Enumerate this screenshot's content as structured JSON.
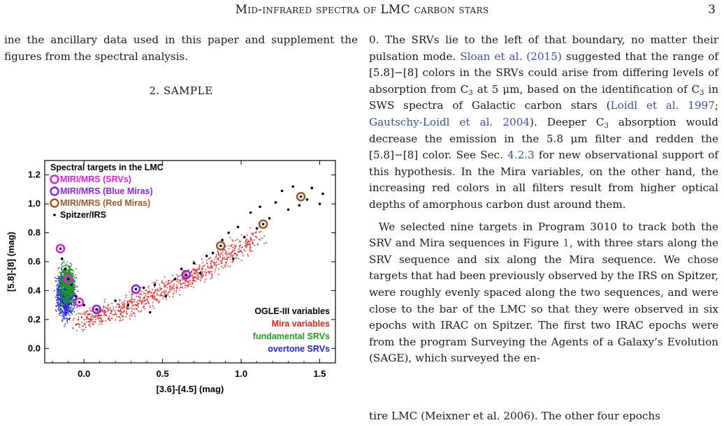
{
  "header": {
    "title": "Mid-infrared spectra of LMC carbon stars",
    "page_number": "3"
  },
  "left_column": {
    "intro_text": "ine the ancillary data used in this paper and supplement the figures from the spectral analysis.",
    "section_heading": "2. SAMPLE"
  },
  "right_column": {
    "p1_a": "0. The SRVs lie to the left of that boundary, no matter their pulsation mode. ",
    "p1_cite1": "Sloan et al. (2015)",
    "p1_b": " suggested that the range of [5.8]−[8] colors in the SRVs could arise from differing levels of absorption from C",
    "p1_c": " at 5 μm, based on the identification of C",
    "p1_d": " in SWS spectra of Galactic carbon stars (",
    "p1_cite2": "Loidl et al. 1997",
    "p1_e": "; ",
    "p1_cite3": "Gautschy-Loidl et al. 2004",
    "p1_f": "). Deeper C",
    "p1_g": " absorption would decrease the emission in the 5.8 μm filter and redden the [5.8]−[8] color. See Sec. ",
    "p1_cite4": "4.2.3",
    "p1_h": " for new observational support of this hypothesis. In the Mira variables, on the other hand, the increasing red colors in all filters result from higher optical depths of amorphous carbon dust around them.",
    "sub3": "3",
    "p2_a": "We selected nine targets in Program 3010 to track both the SRV and Mira sequences in Figure ",
    "p2_cite1": "1",
    "p2_b": ", with three stars along the SRV sequence and six along the Mira sequence. We chose targets that had been previously observed by the IRS on Spitzer, were roughly evenly spaced along the two sequences, and were close to the bar of the LMC so that they were observed in six epochs with IRAC on Spitzer. The first two IRAC epochs were from the program Surveying the Agents of a Galaxy’s Evolution (SAGE), which surveyed the en-",
    "p2_cut": "tire LMC (Meixner et al. 2006). The other four epochs"
  },
  "chart_data": {
    "type": "scatter",
    "title": "",
    "xlabel": "[3.6]-[4.5] (mag)",
    "ylabel": "[5.8]-[8] (mag)",
    "xlim": [
      -0.25,
      1.6
    ],
    "ylim": [
      -0.1,
      1.3
    ],
    "x_ticks": [
      "0.0",
      "0.5",
      "1.0",
      "1.5"
    ],
    "x_tick_values": [
      0.0,
      0.5,
      1.0,
      1.5
    ],
    "y_ticks": [
      "0.0",
      "0.2",
      "0.4",
      "0.6",
      "0.8",
      "1.0",
      "1.2"
    ],
    "y_tick_values": [
      0.0,
      0.2,
      0.4,
      0.6,
      0.8,
      1.0,
      1.2
    ],
    "legend_top": {
      "heading": "Spectral targets in the LMC",
      "entries": [
        {
          "label": "MIRI/MRS (SRVs)",
          "color": "#e21ee2"
        },
        {
          "label": "MIRI/MRS (Blue Miras)",
          "color": "#8a22e8"
        },
        {
          "label": "MIRI/MRS (Red Miras)",
          "color": "#9a5a2a"
        },
        {
          "label": "Spitzer/IRS",
          "color": "#000000"
        }
      ]
    },
    "legend_bottom": [
      {
        "label": "OGLE-III variables",
        "color": "#000000"
      },
      {
        "label": "Mira variables",
        "color": "#ee1c1c"
      },
      {
        "label": "fundamental SRVs",
        "color": "#1e9e1e"
      },
      {
        "label": "overtone SRVs",
        "color": "#2020e0"
      }
    ],
    "series": [
      {
        "name": "MIRI/MRS (SRVs)",
        "color": "#e21ee2",
        "points": [
          [
            -0.15,
            0.69
          ],
          [
            -0.1,
            0.48
          ],
          [
            -0.03,
            0.32
          ]
        ]
      },
      {
        "name": "MIRI/MRS (Blue Miras)",
        "color": "#8a22e8",
        "points": [
          [
            0.08,
            0.27
          ],
          [
            0.33,
            0.41
          ],
          [
            0.65,
            0.51
          ]
        ]
      },
      {
        "name": "MIRI/MRS (Red Miras)",
        "color": "#9a5a2a",
        "points": [
          [
            0.87,
            0.71
          ],
          [
            1.14,
            0.86
          ],
          [
            1.38,
            1.05
          ]
        ]
      },
      {
        "name": "Spitzer/IRS",
        "color": "#000000",
        "points": [
          [
            -0.14,
            0.62
          ],
          [
            -0.12,
            0.55
          ],
          [
            -0.08,
            0.44
          ],
          [
            -0.05,
            0.36
          ],
          [
            0.0,
            0.3
          ],
          [
            0.2,
            0.33
          ],
          [
            0.28,
            0.3
          ],
          [
            0.38,
            0.42
          ],
          [
            0.42,
            0.25
          ],
          [
            0.45,
            0.44
          ],
          [
            0.52,
            0.36
          ],
          [
            0.58,
            0.48
          ],
          [
            0.62,
            0.55
          ],
          [
            0.7,
            0.59
          ],
          [
            0.74,
            0.52
          ],
          [
            0.78,
            0.64
          ],
          [
            0.82,
            0.66
          ],
          [
            0.88,
            0.75
          ],
          [
            0.92,
            0.8
          ],
          [
            0.95,
            0.62
          ],
          [
            0.98,
            0.84
          ],
          [
            1.02,
            0.77
          ],
          [
            1.06,
            0.94
          ],
          [
            1.1,
            0.83
          ],
          [
            1.12,
            0.98
          ],
          [
            1.18,
            0.9
          ],
          [
            1.22,
            1.01
          ],
          [
            1.26,
            1.09
          ],
          [
            1.3,
            0.96
          ],
          [
            1.33,
            1.12
          ],
          [
            1.37,
            0.99
          ],
          [
            1.42,
            1.03
          ],
          [
            1.45,
            1.11
          ],
          [
            1.5,
            1.0
          ],
          [
            1.52,
            1.07
          ]
        ]
      }
    ]
  }
}
